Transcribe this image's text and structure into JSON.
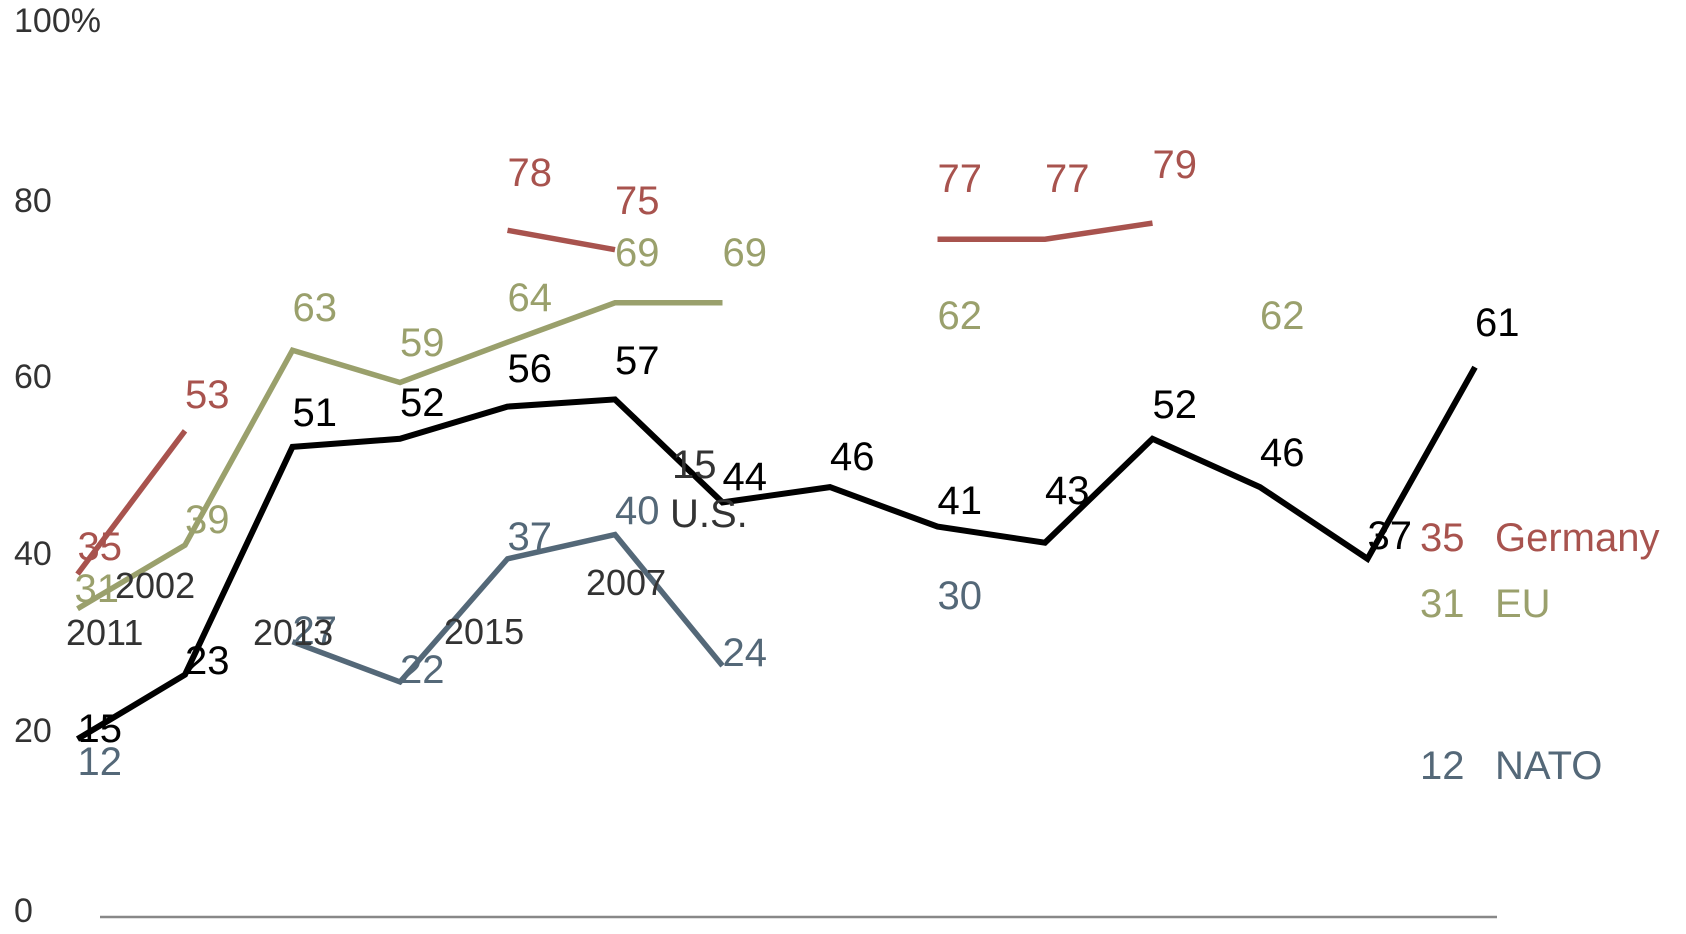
{
  "chart_data": {
    "type": "line",
    "ylim": [
      0,
      100
    ],
    "y_ticks": [
      "100%",
      "80",
      "60",
      "40",
      "20",
      "0"
    ],
    "y_tick_values": [
      100,
      80,
      60,
      40,
      20,
      0
    ],
    "grid": false,
    "legend_placement": "right, end of lines",
    "colors": {
      "Germany": "#a8534e",
      "EU": "#9aa06c",
      "US": "#000000",
      "NATO": "#546878",
      "axis": "#888888"
    },
    "series": [
      {
        "key": "Germany",
        "values": [
          35,
          53,
          null,
          null,
          78,
          75,
          null,
          null,
          77,
          77,
          79,
          null,
          null,
          null
        ]
      },
      {
        "key": "EU",
        "values": [
          31,
          39,
          63,
          59,
          64,
          69,
          69,
          null,
          62,
          null,
          null,
          62,
          null,
          null
        ]
      },
      {
        "key": "US",
        "values": [
          15,
          23,
          51,
          52,
          56,
          57,
          44,
          46,
          41,
          43,
          52,
          46,
          37,
          61
        ]
      },
      {
        "key": "NATO",
        "values": [
          12,
          null,
          27,
          22,
          37,
          40,
          24,
          null,
          30,
          null,
          null,
          null,
          null,
          null
        ]
      }
    ],
    "line_segments": {
      "Germany": [
        [
          [
            0,
            42.6
          ],
          [
            1,
            60.4
          ]
        ],
        [
          [
            4,
            85.3
          ],
          [
            5,
            82.9
          ]
        ],
        [
          [
            8,
            84.2
          ],
          [
            9,
            84.2
          ],
          [
            10,
            86.2
          ]
        ]
      ],
      "EU": [
        [
          [
            0,
            38.3
          ],
          [
            1,
            46.2
          ],
          [
            2,
            70.4
          ],
          [
            3,
            66.4
          ],
          [
            4,
            71.4
          ],
          [
            5,
            76.3
          ],
          [
            6,
            76.3
          ]
        ]
      ],
      "US": [
        [
          [
            0,
            22.1
          ],
          [
            1,
            30.1
          ],
          [
            2,
            58.4
          ],
          [
            3,
            59.4
          ],
          [
            4,
            63.4
          ],
          [
            5,
            64.3
          ],
          [
            6,
            51.5
          ],
          [
            7,
            53.4
          ],
          [
            8,
            48.5
          ],
          [
            9,
            46.5
          ],
          [
            10,
            59.4
          ],
          [
            11,
            53.4
          ],
          [
            12,
            44.5
          ],
          [
            13,
            68.3
          ]
        ]
      ],
      "NATO": [
        [
          [
            2,
            34.2
          ],
          [
            3,
            29.2
          ],
          [
            4,
            44.5
          ],
          [
            5,
            47.5
          ],
          [
            6,
            31.2
          ]
        ]
      ]
    },
    "stray_labels": [
      "2011",
      "2002",
      "2013",
      "2015",
      "2007",
      "15",
      "U.S."
    ],
    "legend": [
      {
        "value": "35",
        "name": "Germany",
        "color": "#a8534e"
      },
      {
        "value": "31",
        "name": "EU",
        "color": "#9aa06c"
      },
      {
        "value": "12",
        "name": "NATO",
        "color": "#546878"
      }
    ]
  }
}
